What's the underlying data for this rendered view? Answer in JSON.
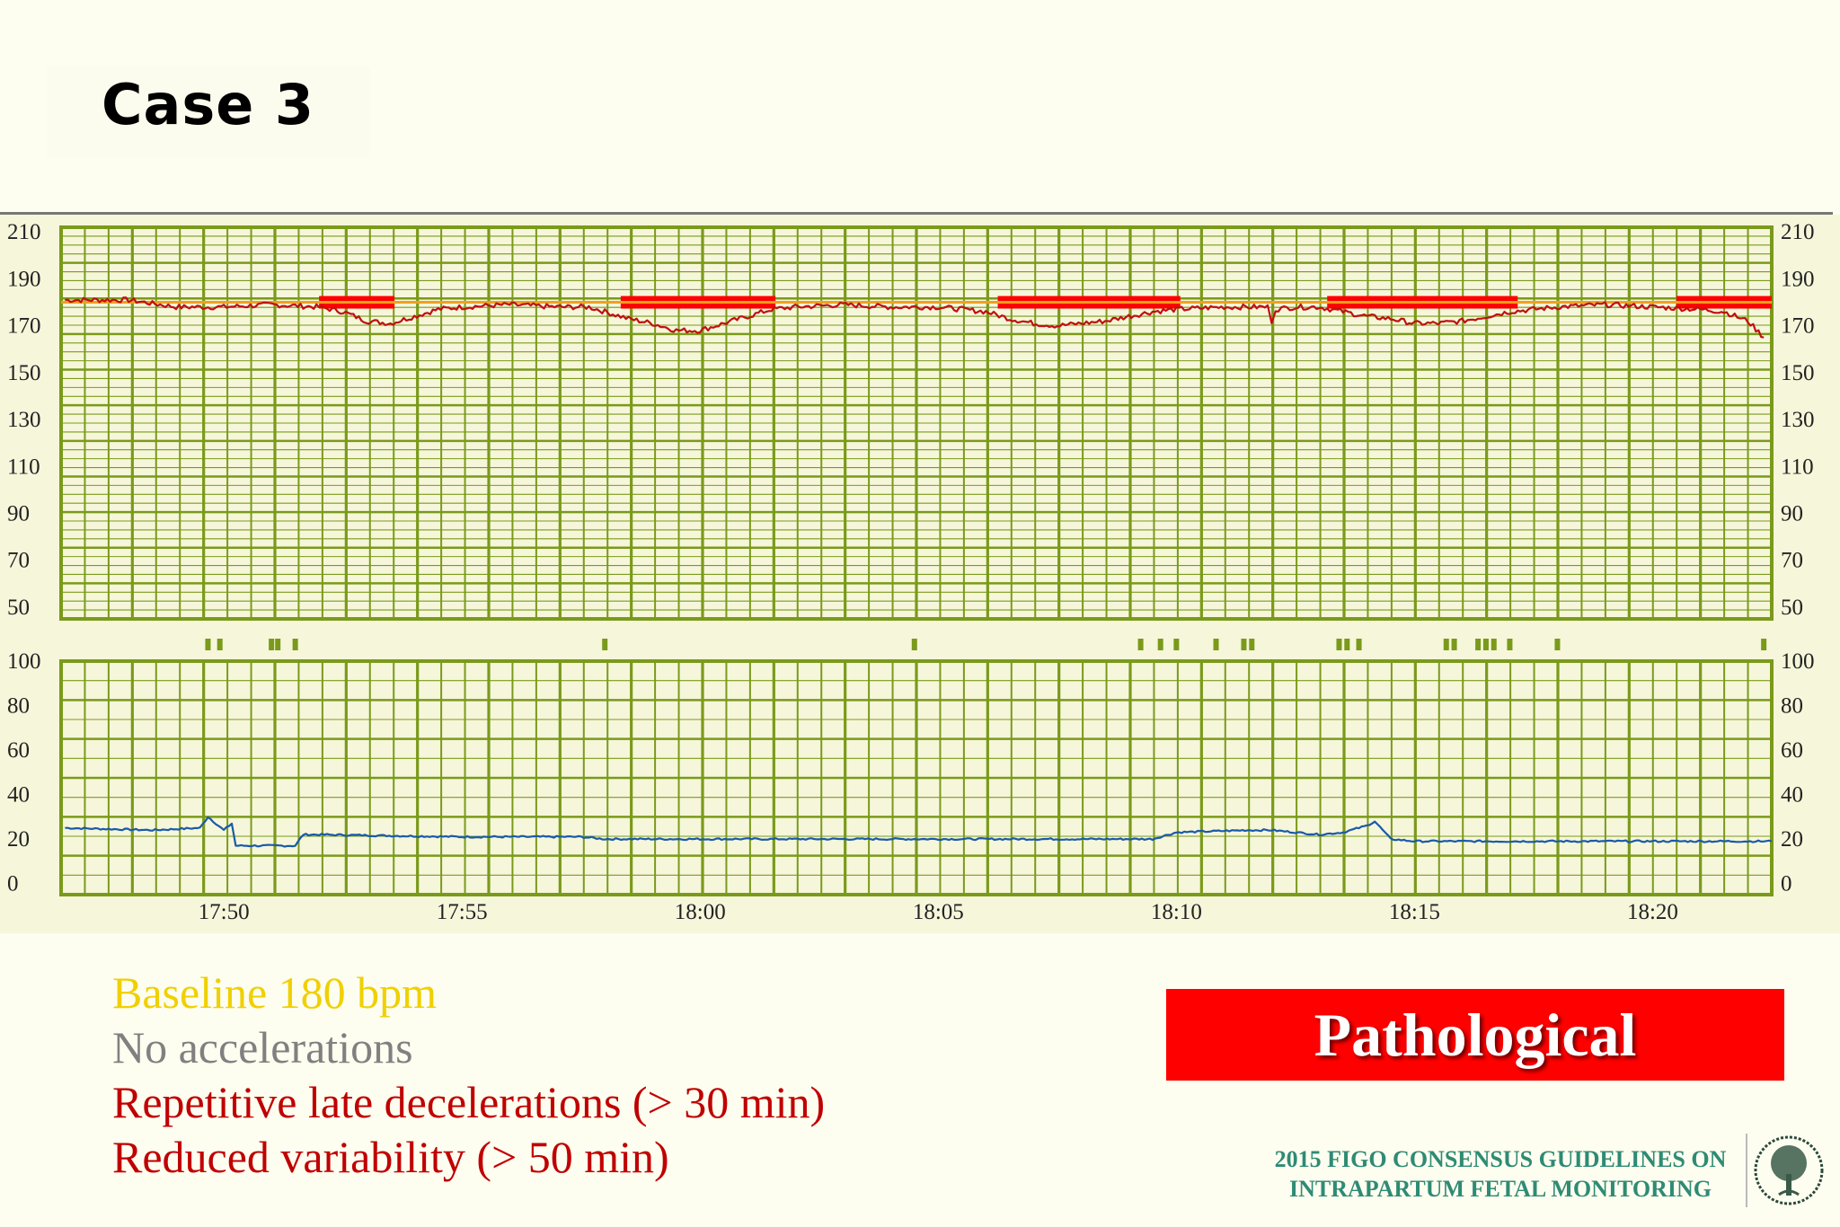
{
  "slide": {
    "title": "Case 3",
    "findings": {
      "baseline": "Baseline 180 bpm",
      "accelerations": "No accelerations",
      "decelerations": "Repetitive late decelerations (> 30 min)",
      "variability": "Reduced variability (> 50 min)"
    },
    "classification": "Pathological",
    "footer_line1": "2015 FIGO CONSENSUS GUIDELINES ON",
    "footer_line2": "INTRAPARTUM FETAL MONITORING"
  },
  "colors": {
    "grid": "#7a9a1a",
    "fhr_trace": "#c01010",
    "baseline_line": "#f0a020",
    "deceleration_marker": "#ff0000",
    "toco_trace": "#1a5aa8",
    "background": "#f6f6db",
    "baseline_text": "#f0d000",
    "accel_text": "#808080",
    "decel_text": "#c00000",
    "badge": "#ff0000",
    "footer": "#2e8b74"
  },
  "chart_data": [
    {
      "type": "line",
      "name": "fhr",
      "yticks": [
        210,
        190,
        170,
        150,
        130,
        110,
        90,
        70,
        50
      ],
      "ylim": [
        45,
        212
      ],
      "xlim": [
        "17:46:35",
        "18:22:30"
      ],
      "baseline_bpm": 180,
      "series": [
        {
          "x": [
            "17:46:40",
            "17:48:00",
            "17:49:00",
            "17:50:00",
            "17:51:00",
            "17:52:00",
            "17:52:30",
            "17:53:00",
            "17:53:30",
            "17:54:00",
            "17:54:30",
            "17:55:00",
            "17:56:00",
            "17:57:00",
            "17:57:40",
            "17:58:00",
            "17:58:30",
            "17:59:00",
            "17:59:30",
            "18:00:00",
            "18:00:30",
            "18:01:00",
            "18:01:30",
            "18:02:00",
            "18:03:00",
            "18:04:00",
            "18:05:00",
            "18:05:30",
            "18:06:00",
            "18:06:30",
            "18:07:00",
            "18:07:30",
            "18:08:00",
            "18:08:30",
            "18:09:00",
            "18:09:30",
            "18:10:00",
            "18:11:00",
            "18:11:55",
            "18:12:00",
            "18:12:05",
            "18:12:30",
            "18:13:00",
            "18:13:30",
            "18:14:00",
            "18:14:30",
            "18:15:00",
            "18:15:30",
            "18:16:00",
            "18:16:30",
            "18:17:00",
            "18:18:00",
            "18:19:00",
            "18:20:00",
            "18:21:00",
            "18:21:30",
            "18:22:00",
            "18:22:20"
          ],
          "values": [
            181,
            181,
            178,
            178,
            179,
            178,
            176,
            172,
            171,
            174,
            177,
            178,
            179,
            178,
            178,
            176,
            173,
            171,
            168,
            168,
            171,
            174,
            177,
            178,
            179,
            178,
            178,
            177,
            176,
            173,
            171,
            170,
            171,
            172,
            174,
            176,
            177,
            178,
            178,
            172,
            177,
            178,
            178,
            176,
            174,
            173,
            171,
            171,
            172,
            174,
            176,
            178,
            179,
            178,
            177,
            176,
            172,
            165
          ]
        }
      ],
      "decelerations": [
        {
          "start": "17:52:00",
          "end": "17:53:35"
        },
        {
          "start": "17:58:20",
          "end": "18:01:35"
        },
        {
          "start": "18:06:15",
          "end": "18:10:05"
        },
        {
          "start": "18:13:10",
          "end": "18:17:10"
        },
        {
          "start": "18:20:30",
          "end": "18:22:30"
        }
      ]
    },
    {
      "type": "line",
      "name": "toco",
      "yticks": [
        100,
        80,
        60,
        40,
        20,
        0
      ],
      "ylim": [
        -5,
        100
      ],
      "xticks": [
        "17:50",
        "17:55",
        "18:00",
        "18:05",
        "18:10",
        "18:15",
        "18:20"
      ],
      "series": [
        {
          "x": [
            "17:46:40",
            "17:48:30",
            "17:49:30",
            "17:49:40",
            "17:50:00",
            "17:50:10",
            "17:50:15",
            "17:51:30",
            "17:51:40",
            "17:52:00",
            "17:55:00",
            "17:57:30",
            "17:58:00",
            "18:00:00",
            "18:05:00",
            "18:09:30",
            "18:10:00",
            "18:11:30",
            "18:12:00",
            "18:13:00",
            "18:13:30",
            "18:14:00",
            "18:14:10",
            "18:14:30",
            "18:15:00",
            "18:17:00",
            "18:20:00",
            "18:22:30"
          ],
          "values": [
            25,
            24,
            25,
            30,
            24,
            27,
            17,
            17,
            22,
            22,
            21,
            21,
            20,
            20,
            20,
            20,
            23,
            24,
            24,
            22,
            23,
            26,
            28,
            20,
            19,
            19,
            19,
            19
          ]
        }
      ]
    },
    {
      "type": "bar",
      "name": "event-markers",
      "x": [
        "17:49:40",
        "17:49:55",
        "17:51:00",
        "17:51:08",
        "17:51:30",
        "17:58:00",
        "18:04:30",
        "18:09:15",
        "18:09:40",
        "18:10:00",
        "18:10:50",
        "18:11:25",
        "18:11:35",
        "18:13:25",
        "18:13:35",
        "18:13:50",
        "18:15:40",
        "18:15:50",
        "18:16:20",
        "18:16:30",
        "18:16:40",
        "18:17:00",
        "18:18:00",
        "18:22:20"
      ]
    }
  ]
}
